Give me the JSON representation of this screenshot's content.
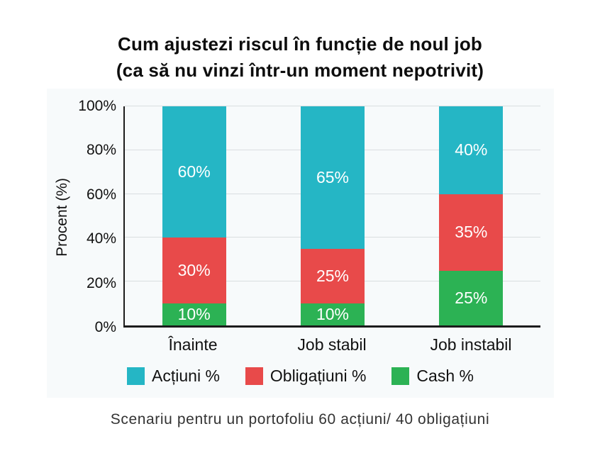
{
  "page": {
    "title_line1": "Cum ajustezi riscul în funcție de noul job",
    "title_line2": "(ca să nu vinzi într-un moment nepotrivit)",
    "caption": "Scenariu pentru un portofoliu 60 acțiuni/ 40 obligațiuni"
  },
  "colors": {
    "stocks": "#25b6c5",
    "bonds": "#e84a4a",
    "cash": "#2cb254",
    "panel_bg": "#f7fafb",
    "grid": "#d9dee0",
    "axis": "#1c1c1c",
    "bar_value_text": "#ffffff"
  },
  "chart_data": {
    "type": "bar",
    "stacked": true,
    "ylabel": "Procent (%)",
    "ylim": [
      0,
      100
    ],
    "grid": true,
    "legend_position": "bottom",
    "yticks": [
      {
        "value": 0,
        "label": "0%"
      },
      {
        "value": 20,
        "label": "20%"
      },
      {
        "value": 40,
        "label": "40%"
      },
      {
        "value": 60,
        "label": "60%"
      },
      {
        "value": 80,
        "label": "80%"
      },
      {
        "value": 100,
        "label": "100%"
      }
    ],
    "categories": [
      "Înainte",
      "Job stabil",
      "Job instabil"
    ],
    "series": [
      {
        "name": "Acțiuni %",
        "color_key": "stocks",
        "values": [
          60,
          65,
          40
        ],
        "labels": [
          "60%",
          "65%",
          "40%"
        ]
      },
      {
        "name": "Obligațiuni %",
        "color_key": "bonds",
        "values": [
          30,
          25,
          35
        ],
        "labels": [
          "30%",
          "25%",
          "35%"
        ]
      },
      {
        "name": "Cash %",
        "color_key": "cash",
        "values": [
          10,
          10,
          25
        ],
        "labels": [
          "10%",
          "10%",
          "25%"
        ]
      }
    ]
  }
}
